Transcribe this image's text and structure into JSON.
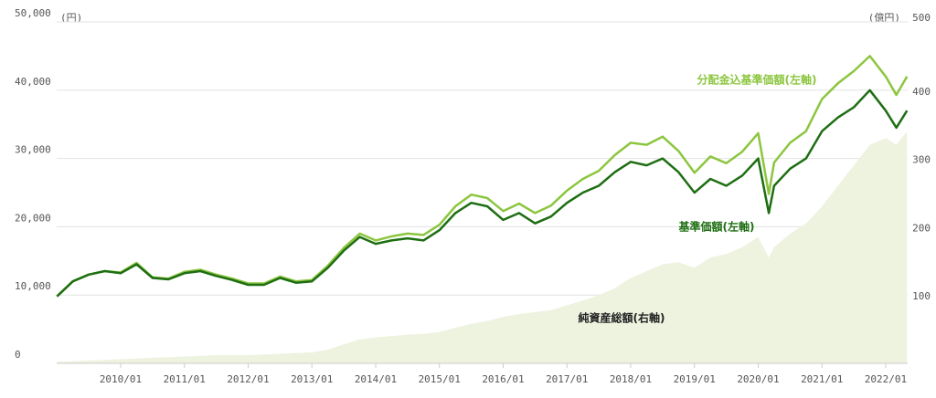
{
  "chart_data": {
    "type": "line",
    "y_unit": "(円)",
    "y2_unit": "(億円)",
    "x": [
      "2009/01",
      "2009/04",
      "2009/07",
      "2009/10",
      "2010/01",
      "2010/04",
      "2010/07",
      "2010/10",
      "2011/01",
      "2011/04",
      "2011/07",
      "2011/10",
      "2012/01",
      "2012/04",
      "2012/07",
      "2012/10",
      "2013/01",
      "2013/04",
      "2013/07",
      "2013/10",
      "2014/01",
      "2014/04",
      "2014/07",
      "2014/10",
      "2015/01",
      "2015/04",
      "2015/07",
      "2015/10",
      "2016/01",
      "2016/04",
      "2016/07",
      "2016/10",
      "2017/01",
      "2017/04",
      "2017/07",
      "2017/10",
      "2018/01",
      "2018/04",
      "2018/07",
      "2018/10",
      "2019/01",
      "2019/04",
      "2019/07",
      "2019/10",
      "2020/01",
      "2020/03",
      "2020/04",
      "2020/07",
      "2020/10",
      "2021/01",
      "2021/04",
      "2021/07",
      "2021/10",
      "2022/01",
      "2022/03",
      "2022/05"
    ],
    "xticks": [
      "2010/01",
      "2011/01",
      "2012/01",
      "2013/01",
      "2014/01",
      "2015/01",
      "2016/01",
      "2017/01",
      "2018/01",
      "2019/01",
      "2020/01",
      "2021/01",
      "2022/01"
    ],
    "series": [
      {
        "name": "純資産総額(右軸)",
        "color": "#eef3e0",
        "axis": "y2",
        "kind": "area",
        "values": [
          2,
          3,
          4,
          5,
          6,
          7,
          8,
          9,
          10,
          11,
          12,
          12,
          12,
          13,
          14,
          15,
          16,
          20,
          28,
          35,
          38,
          40,
          42,
          43,
          46,
          52,
          58,
          62,
          68,
          72,
          75,
          78,
          85,
          92,
          100,
          110,
          125,
          135,
          145,
          148,
          140,
          155,
          160,
          170,
          185,
          155,
          170,
          190,
          205,
          230,
          260,
          290,
          320,
          330,
          320,
          340
        ]
      },
      {
        "name": "分配金込基準価額(左軸)",
        "color": "#8cc63f",
        "values": [
          9800,
          12000,
          13000,
          13500,
          13300,
          14700,
          12600,
          12400,
          13400,
          13700,
          13000,
          12400,
          11700,
          11700,
          12700,
          12000,
          12200,
          14300,
          16900,
          19000,
          18000,
          18600,
          19000,
          18800,
          20300,
          23000,
          24700,
          24200,
          22300,
          23400,
          22000,
          23100,
          25300,
          27000,
          28200,
          30500,
          32300,
          32000,
          33200,
          31100,
          27900,
          30300,
          29300,
          31000,
          33700,
          24800,
          29400,
          32300,
          34000,
          38700,
          41000,
          42800,
          45000,
          42000,
          39300,
          42000
        ]
      },
      {
        "name": "基準価額(左軸)",
        "color": "#1e6e12",
        "values": [
          9800,
          12000,
          13000,
          13500,
          13200,
          14500,
          12500,
          12300,
          13200,
          13500,
          12800,
          12200,
          11500,
          11500,
          12500,
          11800,
          12000,
          14000,
          16500,
          18500,
          17500,
          18000,
          18300,
          18000,
          19500,
          22000,
          23500,
          23000,
          21000,
          22000,
          20500,
          21500,
          23500,
          25000,
          26000,
          28000,
          29500,
          29000,
          30000,
          28000,
          25000,
          27000,
          26000,
          27500,
          30000,
          22000,
          26000,
          28500,
          30000,
          34000,
          36000,
          37500,
          40000,
          37000,
          34500,
          37000
        ]
      }
    ],
    "ylim": [
      0,
      50000
    ],
    "yticks": [
      0,
      {
        "value": 10000,
        "label": "10,000"
      },
      {
        "value": 20000,
        "label": "20,000"
      },
      {
        "value": 30000,
        "label": "30,000"
      },
      {
        "value": 40000,
        "label": "40,000"
      },
      {
        "value": 50000,
        "label": "50,000"
      }
    ],
    "y2lim": [
      0,
      500
    ],
    "y2ticks": [
      100,
      200,
      300,
      400,
      500
    ],
    "grid": true
  }
}
